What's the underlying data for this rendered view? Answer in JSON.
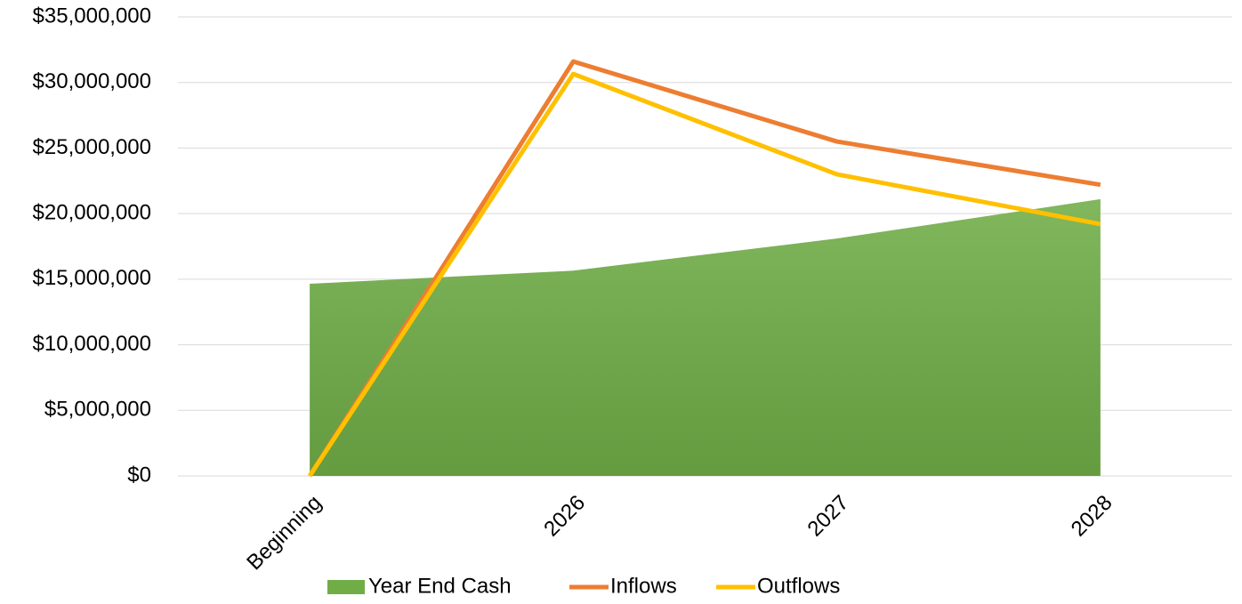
{
  "chart_data": {
    "type": "line",
    "categories": [
      "Beginning",
      "2026",
      "2027",
      "2028"
    ],
    "series": [
      {
        "name": "Year End Cash",
        "type": "area",
        "color": "#70ad47",
        "values": [
          14650000,
          15650000,
          18100000,
          21100000
        ]
      },
      {
        "name": "Inflows",
        "type": "line",
        "color": "#ed7d31",
        "values": [
          0,
          31600000,
          25500000,
          22200000
        ]
      },
      {
        "name": "Outflows",
        "type": "line",
        "color": "#ffc000",
        "values": [
          0,
          30650000,
          23000000,
          19200000
        ]
      }
    ],
    "ylim": [
      0,
      35000000
    ],
    "yticks": [
      {
        "value": 0,
        "label": "$0"
      },
      {
        "value": 5000000,
        "label": "$5,000,000"
      },
      {
        "value": 10000000,
        "label": "$10,000,000"
      },
      {
        "value": 15000000,
        "label": "$15,000,000"
      },
      {
        "value": 20000000,
        "label": "$20,000,000"
      },
      {
        "value": 25000000,
        "label": "$25,000,000"
      },
      {
        "value": 30000000,
        "label": "$30,000,000"
      },
      {
        "value": 35000000,
        "label": "$35,000,000"
      }
    ],
    "grid": true,
    "legend": "bottom"
  }
}
